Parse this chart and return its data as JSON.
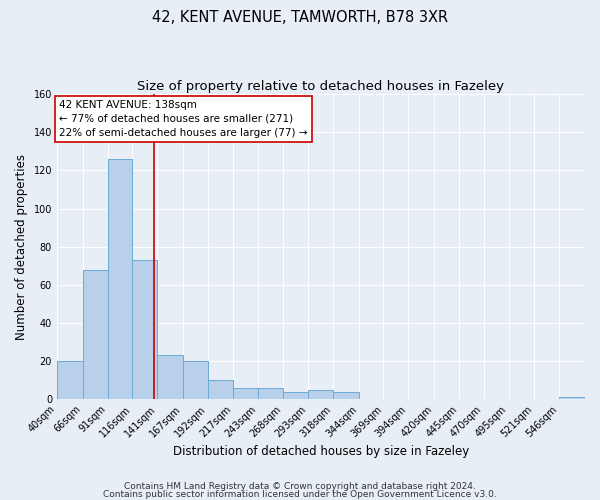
{
  "title": "42, KENT AVENUE, TAMWORTH, B78 3XR",
  "subtitle": "Size of property relative to detached houses in Fazeley",
  "xlabel": "Distribution of detached houses by size in Fazeley",
  "ylabel": "Number of detached properties",
  "bar_labels": [
    "40sqm",
    "66sqm",
    "91sqm",
    "116sqm",
    "141sqm",
    "167sqm",
    "192sqm",
    "217sqm",
    "243sqm",
    "268sqm",
    "293sqm",
    "318sqm",
    "344sqm",
    "369sqm",
    "394sqm",
    "420sqm",
    "445sqm",
    "470sqm",
    "495sqm",
    "521sqm",
    "546sqm"
  ],
  "bar_values": [
    20,
    68,
    126,
    73,
    23,
    20,
    10,
    6,
    6,
    4,
    5,
    4,
    0,
    0,
    0,
    0,
    0,
    0,
    0,
    0,
    1
  ],
  "bar_color": "#b8d0ea",
  "bar_edge_color": "#6aaad4",
  "property_line_x": 138,
  "bin_edges": [
    40,
    66,
    91,
    116,
    141,
    167,
    192,
    217,
    243,
    268,
    293,
    318,
    344,
    369,
    394,
    420,
    445,
    470,
    495,
    521,
    546,
    572
  ],
  "annotation_title": "42 KENT AVENUE: 138sqm",
  "annotation_line1": "← 77% of detached houses are smaller (271)",
  "annotation_line2": "22% of semi-detached houses are larger (77) →",
  "annotation_box_color": "#ffffff",
  "annotation_box_edge_color": "#cc0000",
  "vline_color": "#cc0000",
  "ylim": [
    0,
    160
  ],
  "yticks": [
    0,
    20,
    40,
    60,
    80,
    100,
    120,
    140,
    160
  ],
  "footer1": "Contains HM Land Registry data © Crown copyright and database right 2024.",
  "footer2": "Contains public sector information licensed under the Open Government Licence v3.0.",
  "background_color": "#e8eef6",
  "plot_background_color": "#e8eef6",
  "grid_color": "#ffffff",
  "title_fontsize": 10.5,
  "subtitle_fontsize": 9.5,
  "axis_label_fontsize": 8.5,
  "tick_fontsize": 7,
  "annotation_fontsize": 7.5,
  "footer_fontsize": 6.5
}
